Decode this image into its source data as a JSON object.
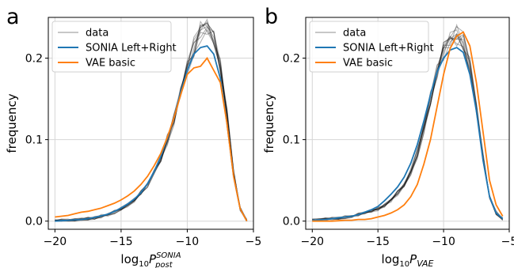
{
  "chart_data": [
    {
      "type": "line",
      "panel_label": "a",
      "xlabel": "log10P_post^SONIA",
      "ylabel": "frequency",
      "xlim": [
        -20.5,
        -5.0
      ],
      "ylim": [
        -0.01,
        0.25
      ],
      "xticks": [
        -20,
        -15,
        -10,
        -5
      ],
      "yticks": [
        0.0,
        0.1,
        0.2
      ],
      "xtick_labels": [
        "−20",
        "−15",
        "−10",
        "−5"
      ],
      "ytick_labels": [
        "0.0",
        "0.1",
        "0.2"
      ],
      "grid": true,
      "legend_position": "top-left",
      "legend": [
        {
          "label": "data",
          "color": "#808080"
        },
        {
          "label": "SONIA Left+Right",
          "color": "#1f77b4"
        },
        {
          "label": "VAE basic",
          "color": "#ff7f0e"
        }
      ],
      "x": [
        -20,
        -19.5,
        -19,
        -18.5,
        -18,
        -17.5,
        -17,
        -16.5,
        -16,
        -15.5,
        -15,
        -14.5,
        -14,
        -13.5,
        -13,
        -12.5,
        -12,
        -11.5,
        -11,
        -10.5,
        -10,
        -9.5,
        -9,
        -8.5,
        -8,
        -7.5,
        -7,
        -6.5,
        -6,
        -5.5
      ],
      "series": [
        {
          "role": "data",
          "name": "data",
          "color": "#808080",
          "copies": 10,
          "values": [
            0.0,
            0.0005,
            0.001,
            0.0015,
            0.002,
            0.003,
            0.004,
            0.006,
            0.008,
            0.011,
            0.015,
            0.02,
            0.026,
            0.034,
            0.045,
            0.06,
            0.078,
            0.1,
            0.125,
            0.155,
            0.19,
            0.215,
            0.232,
            0.235,
            0.225,
            0.19,
            0.13,
            0.06,
            0.015,
            0.0
          ]
        },
        {
          "role": "fit",
          "name": "SONIA Left+Right",
          "color": "#1f77b4",
          "values": [
            0.0,
            0.0005,
            0.001,
            0.0015,
            0.002,
            0.003,
            0.0045,
            0.0065,
            0.0085,
            0.012,
            0.016,
            0.021,
            0.027,
            0.035,
            0.046,
            0.061,
            0.079,
            0.102,
            0.127,
            0.158,
            0.185,
            0.205,
            0.213,
            0.215,
            0.205,
            0.175,
            0.12,
            0.055,
            0.015,
            0.0
          ]
        },
        {
          "role": "fit",
          "name": "VAE basic",
          "color": "#ff7f0e",
          "values": [
            0.005,
            0.006,
            0.007,
            0.009,
            0.011,
            0.012,
            0.014,
            0.016,
            0.019,
            0.022,
            0.026,
            0.031,
            0.037,
            0.045,
            0.055,
            0.068,
            0.083,
            0.103,
            0.127,
            0.155,
            0.18,
            0.188,
            0.19,
            0.2,
            0.185,
            0.17,
            0.12,
            0.055,
            0.015,
            0.0
          ]
        }
      ]
    },
    {
      "type": "line",
      "panel_label": "b",
      "xlabel": "log10P_VAE",
      "ylabel": "frequency",
      "xlim": [
        -20.5,
        -5.0
      ],
      "ylim": [
        -0.01,
        0.25
      ],
      "xticks": [
        -20,
        -15,
        -10,
        -5
      ],
      "yticks": [
        0.0,
        0.1,
        0.2
      ],
      "xtick_labels": [
        "−20",
        "−15",
        "−10",
        "−5"
      ],
      "ytick_labels": [
        "0.0",
        "0.1",
        "0.2"
      ],
      "grid": true,
      "legend_position": "top-left",
      "legend": [
        {
          "label": "data",
          "color": "#808080"
        },
        {
          "label": "SONIA Left+Right",
          "color": "#1f77b4"
        },
        {
          "label": "VAE basic",
          "color": "#ff7f0e"
        }
      ],
      "x": [
        -20,
        -19.5,
        -19,
        -18.5,
        -18,
        -17.5,
        -17,
        -16.5,
        -16,
        -15.5,
        -15,
        -14.5,
        -14,
        -13.5,
        -13,
        -12.5,
        -12,
        -11.5,
        -11,
        -10.5,
        -10,
        -9.5,
        -9,
        -8.5,
        -8,
        -7.5,
        -7,
        -6.5,
        -6,
        -5.5
      ],
      "series": [
        {
          "role": "data",
          "name": "data",
          "color": "#808080",
          "copies": 10,
          "values": [
            0.001,
            0.0015,
            0.002,
            0.003,
            0.004,
            0.005,
            0.006,
            0.008,
            0.01,
            0.012,
            0.015,
            0.02,
            0.026,
            0.034,
            0.044,
            0.06,
            0.083,
            0.115,
            0.15,
            0.185,
            0.21,
            0.222,
            0.228,
            0.22,
            0.19,
            0.14,
            0.08,
            0.03,
            0.01,
            0.003
          ]
        },
        {
          "role": "fit",
          "name": "SONIA Left+Right",
          "color": "#1f77b4",
          "values": [
            0.001,
            0.0015,
            0.002,
            0.003,
            0.004,
            0.005,
            0.006,
            0.008,
            0.011,
            0.014,
            0.018,
            0.025,
            0.033,
            0.042,
            0.054,
            0.071,
            0.094,
            0.123,
            0.155,
            0.183,
            0.2,
            0.21,
            0.213,
            0.207,
            0.18,
            0.135,
            0.075,
            0.03,
            0.01,
            0.003
          ]
        },
        {
          "role": "fit",
          "name": "VAE basic",
          "color": "#ff7f0e",
          "values": [
            0.0,
            0.0,
            0.0,
            0.0,
            0.0005,
            0.001,
            0.001,
            0.002,
            0.002,
            0.003,
            0.005,
            0.007,
            0.01,
            0.014,
            0.02,
            0.03,
            0.045,
            0.07,
            0.1,
            0.14,
            0.18,
            0.212,
            0.227,
            0.232,
            0.215,
            0.17,
            0.11,
            0.05,
            0.02,
            0.006
          ]
        }
      ]
    }
  ]
}
